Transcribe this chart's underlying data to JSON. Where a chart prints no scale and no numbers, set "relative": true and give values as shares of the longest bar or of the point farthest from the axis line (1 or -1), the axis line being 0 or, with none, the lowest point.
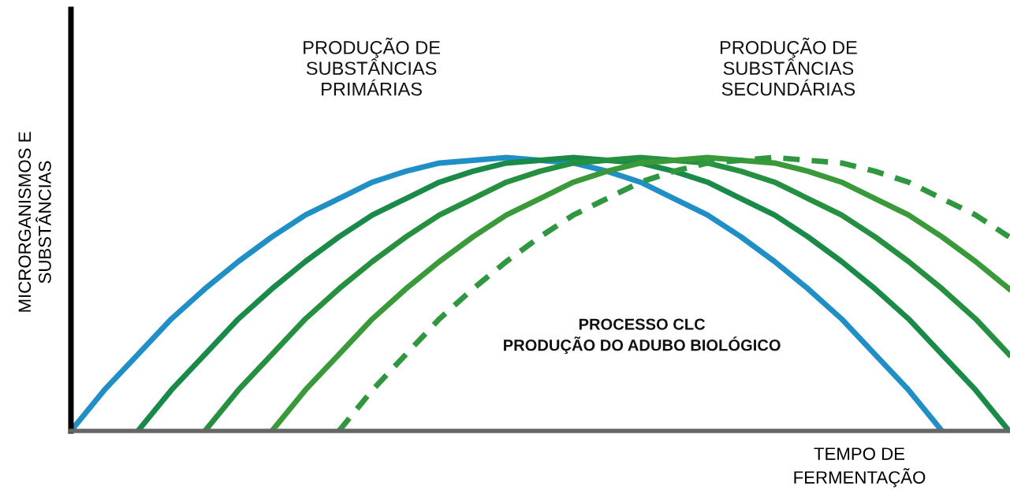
{
  "chart_data": {
    "type": "line",
    "relative": true,
    "ylabel": "MICRORGANISMOS E\nSUBSTÂNCIAS",
    "xlabel": "TEMPO DE\nFERMENTAÇÃO",
    "annotations": [
      "PRODUÇÃO DE\nSUBSTÂNCIAS\nPRIMÁRIAS",
      "PRODUÇÃO DE\nSUBSTÂNCIAS\nSECUNDÁRIAS",
      "PROCESSO CLC\nPRODUÇÃO DO ADUBO BIOLÓGICO"
    ],
    "categories": [
      null,
      null,
      null,
      null,
      null,
      null,
      null,
      null,
      null,
      null,
      null,
      null,
      null,
      null,
      null,
      null,
      null,
      null,
      null,
      null,
      null,
      null,
      null,
      null,
      null,
      null,
      null,
      null,
      null
    ],
    "grid": false,
    "legend": false,
    "marker": "none",
    "series": [
      {
        "color": "#1f8fc6",
        "line_style": "solid",
        "values": [
          0,
          0.15,
          0.28,
          0.41,
          0.52,
          0.62,
          0.71,
          0.79,
          0.85,
          0.91,
          0.95,
          0.98,
          0.99,
          1,
          0.99,
          0.98,
          0.95,
          0.91,
          0.85,
          0.79,
          0.71,
          0.62,
          0.52,
          0.41,
          0.28,
          0.15,
          0,
          null,
          null
        ]
      },
      {
        "color": "#1a8a48",
        "line_style": "solid",
        "values": [
          null,
          null,
          0,
          0.15,
          0.28,
          0.41,
          0.52,
          0.62,
          0.71,
          0.79,
          0.85,
          0.91,
          0.95,
          0.98,
          0.99,
          1,
          0.99,
          0.98,
          0.95,
          0.91,
          0.85,
          0.79,
          0.71,
          0.62,
          0.52,
          0.41,
          0.28,
          0.15,
          0
        ]
      },
      {
        "color": "#25903f",
        "line_style": "solid",
        "values": [
          null,
          null,
          null,
          null,
          0,
          0.15,
          0.28,
          0.41,
          0.52,
          0.62,
          0.71,
          0.79,
          0.85,
          0.91,
          0.95,
          0.98,
          0.99,
          1,
          0.99,
          0.98,
          0.95,
          0.91,
          0.85,
          0.79,
          0.71,
          0.62,
          0.52,
          0.41,
          0.28
        ]
      },
      {
        "color": "#3a9a3a",
        "line_style": "solid",
        "values": [
          null,
          null,
          null,
          null,
          null,
          null,
          0,
          0.15,
          0.28,
          0.41,
          0.52,
          0.62,
          0.71,
          0.79,
          0.85,
          0.91,
          0.95,
          0.98,
          0.99,
          1,
          0.99,
          0.98,
          0.95,
          0.91,
          0.85,
          0.79,
          0.71,
          0.62,
          0.52
        ]
      },
      {
        "color": "#2f973f",
        "line_style": "dashed",
        "values": [
          null,
          null,
          null,
          null,
          null,
          null,
          null,
          null,
          0,
          0.15,
          0.28,
          0.41,
          0.52,
          0.62,
          0.71,
          0.79,
          0.85,
          0.91,
          0.95,
          0.98,
          0.99,
          1,
          0.99,
          0.98,
          0.95,
          0.91,
          0.85,
          0.79,
          0.71
        ]
      }
    ]
  }
}
